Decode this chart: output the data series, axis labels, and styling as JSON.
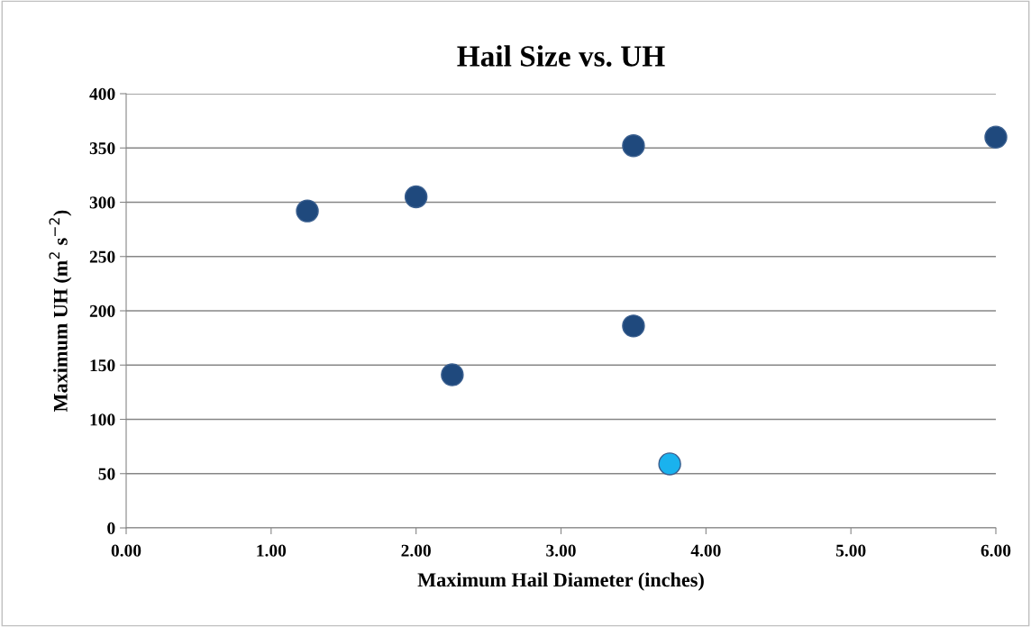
{
  "chart_data": {
    "type": "scatter",
    "title": "Hail Size vs. UH",
    "xlabel": "Maximum Hail Diameter (inches)",
    "ylabel": "Maximum UH (m$^{2}$ s$^{−2}$)",
    "x": [
      1.25,
      2.0,
      2.25,
      3.5,
      3.5,
      3.75,
      6.0
    ],
    "values": [
      292,
      305,
      141,
      352,
      186,
      59,
      360
    ],
    "colors": [
      "#1f497d",
      "#1f497d",
      "#1f497d",
      "#1f497d",
      "#1f497d",
      "#1ab2ee",
      "#1f497d"
    ],
    "marker": "circle",
    "xlim": [
      0,
      6
    ],
    "ylim": [
      0,
      400
    ],
    "xticks": [
      {
        "value": 0,
        "label": "0.00"
      },
      {
        "value": 1,
        "label": "1.00"
      },
      {
        "value": 2,
        "label": "2.00"
      },
      {
        "value": 3,
        "label": "3.00"
      },
      {
        "value": 4,
        "label": "4.00"
      },
      {
        "value": 5,
        "label": "5.00"
      },
      {
        "value": 6,
        "label": "6.00"
      }
    ],
    "yticks": [
      0,
      50,
      100,
      150,
      200,
      250,
      300,
      350,
      400
    ],
    "grid": "y",
    "legend": false
  }
}
